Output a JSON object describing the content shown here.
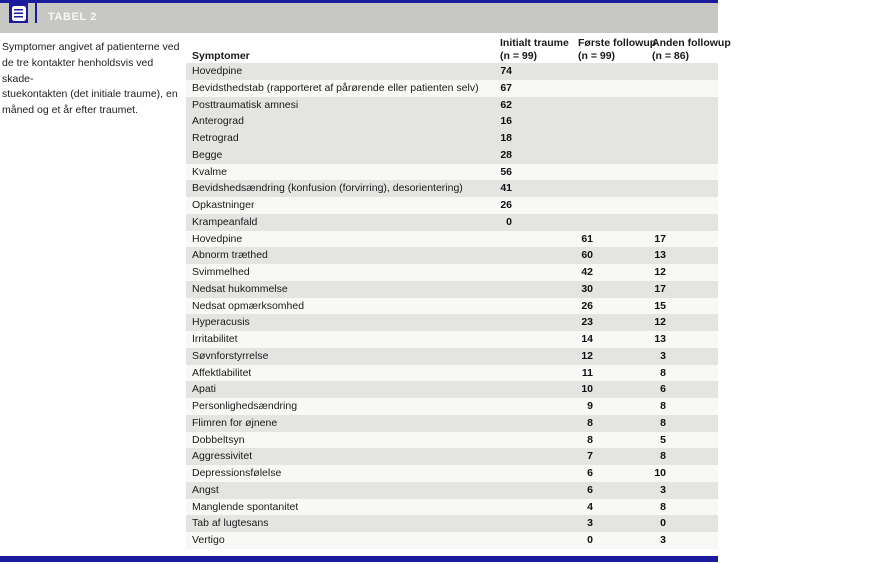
{
  "header": {
    "table_label": "TABEL 2",
    "icon": "table-list-icon"
  },
  "caption": {
    "lines": [
      "Symptomer angivet af patienterne ved",
      "de tre kontakter henholdsvis ved skade-",
      "stuekontakten (det initiale traume), en",
      "måned og et år efter traumet."
    ]
  },
  "table": {
    "columns": [
      {
        "label": "Symptomer",
        "sub": ""
      },
      {
        "label": "Initialt traume",
        "sub": "(n = 99)"
      },
      {
        "label": "Første followup",
        "sub": "(n = 99)"
      },
      {
        "label": "Anden followup",
        "sub": "(n = 86)"
      }
    ],
    "rows": [
      {
        "symptom": "Hovedpine",
        "initial": "74",
        "first": "",
        "second": "",
        "shaded": true
      },
      {
        "symptom": "Bevidsthedstab (rapporteret af pårørende eller patienten selv)",
        "initial": "67",
        "first": "",
        "second": "",
        "shaded": false
      },
      {
        "symptom": "Posttraumatisk amnesi",
        "initial": "62",
        "first": "",
        "second": "",
        "shaded": true
      },
      {
        "symptom": "Anterograd",
        "initial": "16",
        "first": "",
        "second": "",
        "shaded": true
      },
      {
        "symptom": "Retrograd",
        "initial": "18",
        "first": "",
        "second": "",
        "shaded": true
      },
      {
        "symptom": "Begge",
        "initial": "28",
        "first": "",
        "second": "",
        "shaded": true
      },
      {
        "symptom": "Kvalme",
        "initial": "56",
        "first": "",
        "second": "",
        "shaded": false
      },
      {
        "symptom": "Bevidshedsændring (konfusion (forvirring), desorientering)",
        "initial": "41",
        "first": "",
        "second": "",
        "shaded": true
      },
      {
        "symptom": "Opkastninger",
        "initial": "26",
        "first": "",
        "second": "",
        "shaded": false
      },
      {
        "symptom": "Krampeanfald",
        "initial": "0",
        "first": "",
        "second": "",
        "shaded": true
      },
      {
        "symptom": "Hovedpine",
        "initial": "",
        "first": "61",
        "second": "17",
        "shaded": false
      },
      {
        "symptom": "Abnorm træthed",
        "initial": "",
        "first": "60",
        "second": "13",
        "shaded": true
      },
      {
        "symptom": "Svimmelhed",
        "initial": "",
        "first": "42",
        "second": "12",
        "shaded": false
      },
      {
        "symptom": "Nedsat hukommelse",
        "initial": "",
        "first": "30",
        "second": "17",
        "shaded": true
      },
      {
        "symptom": "Nedsat opmærksomhed",
        "initial": "",
        "first": "26",
        "second": "15",
        "shaded": false
      },
      {
        "symptom": "Hyperacusis",
        "initial": "",
        "first": "23",
        "second": "12",
        "shaded": true
      },
      {
        "symptom": "Irritabilitet",
        "initial": "",
        "first": "14",
        "second": "13",
        "shaded": false
      },
      {
        "symptom": "Søvnforstyrrelse",
        "initial": "",
        "first": "12",
        "second": "3",
        "shaded": true
      },
      {
        "symptom": "Affektlabilitet",
        "initial": "",
        "first": "11",
        "second": "8",
        "shaded": false
      },
      {
        "symptom": "Apati",
        "initial": "",
        "first": "10",
        "second": "6",
        "shaded": true
      },
      {
        "symptom": "Personlighedsændring",
        "initial": "",
        "first": "9",
        "second": "8",
        "shaded": false
      },
      {
        "symptom": "Flimren for øjnene",
        "initial": "",
        "first": "8",
        "second": "8",
        "shaded": true
      },
      {
        "symptom": "Dobbeltsyn",
        "initial": "",
        "first": "8",
        "second": "5",
        "shaded": false
      },
      {
        "symptom": "Aggressivitet",
        "initial": "",
        "first": "7",
        "second": "8",
        "shaded": true
      },
      {
        "symptom": "Depressionsfølelse",
        "initial": "",
        "first": "6",
        "second": "10",
        "shaded": false
      },
      {
        "symptom": "Angst",
        "initial": "",
        "first": "6",
        "second": "3",
        "shaded": true
      },
      {
        "symptom": "Manglende spontanitet",
        "initial": "",
        "first": "4",
        "second": "8",
        "shaded": false
      },
      {
        "symptom": "Tab af lugtesans",
        "initial": "",
        "first": "3",
        "second": "0",
        "shaded": true
      },
      {
        "symptom": "Vertigo",
        "initial": "",
        "first": "0",
        "second": "3",
        "shaded": false
      }
    ]
  },
  "colors": {
    "navy": "#1b1b9e",
    "header_bar_gray": "#c7c7c3",
    "row_shaded": "#e4e4e2",
    "row_plain": "#f8f8f6"
  }
}
